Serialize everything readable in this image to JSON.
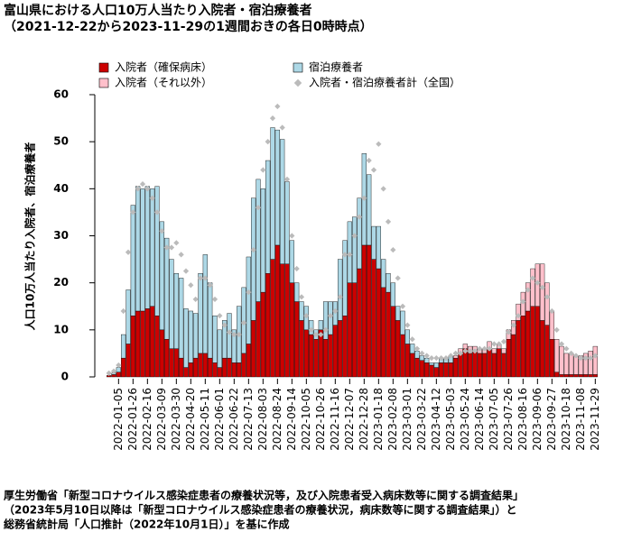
{
  "chart_data": {
    "type": "bar",
    "stacked": true,
    "title": "富山県における人口10万人当たり入院者・宿泊療養者",
    "subtitle": "（2021-12-22から2023-11-29の1週間おきの各日0時時点）",
    "y_label": "人口10万人当たり入院者、宿泊療養者",
    "footnote": [
      "厚生労働省「新型コロナウイルス感染症患者の療養状況等，及び入院患者受入病床数等に関する調査結果」",
      "（2023年5月10日以降は「新型コロナウイルス感染症患者の療養状況，病床数等に関する調査結果」）と",
      "総務省統計局「人口推計（2022年10月1日）」を基に作成"
    ],
    "categories": [
      null,
      null,
      "2022-01-05",
      null,
      null,
      "2022-01-26",
      null,
      null,
      "2022-02-16",
      null,
      null,
      "2022-03-09",
      null,
      null,
      "2022-03-30",
      null,
      null,
      "2022-04-20",
      null,
      null,
      "2022-05-11",
      null,
      null,
      "2022-06-01",
      null,
      null,
      "2022-06-22",
      null,
      null,
      "2022-07-13",
      null,
      null,
      "2022-08-03",
      null,
      null,
      "2022-08-24",
      null,
      null,
      "2022-09-14",
      null,
      null,
      "2022-10-05",
      null,
      null,
      "2022-10-26",
      null,
      null,
      "2022-11-16",
      null,
      null,
      "2022-12-07",
      null,
      null,
      "2022-12-28",
      null,
      null,
      "2023-01-18",
      null,
      null,
      "2023-02-08",
      null,
      null,
      "2023-03-01",
      null,
      null,
      "2023-03-22",
      null,
      null,
      "2023-04-12",
      null,
      null,
      "2023-05-03",
      null,
      null,
      "2023-05-24",
      null,
      null,
      "2023-06-14",
      null,
      null,
      "2023-07-05",
      null,
      null,
      "2023-07-26",
      null,
      null,
      "2023-08-16",
      null,
      null,
      "2023-09-06",
      null,
      null,
      "2023-09-27",
      null,
      null,
      "2023-10-18",
      null,
      null,
      "2023-11-08",
      null,
      null,
      "2023-11-29"
    ],
    "series": [
      {
        "name": "入院者（確保病床）",
        "color": "#cc0000",
        "values": [
          0.3,
          0.5,
          1,
          4,
          7,
          13,
          14,
          14,
          14.5,
          15,
          13,
          10,
          8,
          6,
          6,
          4,
          2,
          3,
          4,
          5,
          5,
          4,
          3,
          2,
          4,
          4,
          3,
          3,
          5,
          7,
          12,
          16,
          18,
          22,
          25,
          28,
          24,
          24,
          20,
          16,
          12,
          10,
          9,
          8,
          10,
          8,
          9,
          11,
          12,
          13,
          20,
          20,
          23,
          28,
          28,
          25,
          23,
          19,
          18,
          15,
          12,
          9,
          7,
          5,
          4,
          3.5,
          3,
          2.5,
          2,
          3,
          3,
          3,
          4,
          5,
          6,
          5,
          5.5,
          5,
          5,
          6,
          5,
          6,
          5,
          8,
          9,
          12,
          13,
          14,
          15,
          15,
          12,
          11,
          8,
          1,
          0.5,
          0.5,
          0.5,
          0.5,
          0.5,
          0.5,
          0.5,
          0.5
        ]
      },
      {
        "name": "入院者（それ以外）",
        "color": "#ffc0cb",
        "values": [
          null,
          null,
          null,
          null,
          null,
          null,
          null,
          null,
          null,
          null,
          null,
          null,
          null,
          null,
          null,
          null,
          null,
          null,
          null,
          null,
          null,
          null,
          null,
          null,
          null,
          null,
          null,
          null,
          null,
          null,
          null,
          null,
          null,
          null,
          null,
          null,
          null,
          null,
          null,
          null,
          null,
          null,
          null,
          null,
          null,
          null,
          null,
          null,
          null,
          null,
          null,
          null,
          null,
          null,
          null,
          null,
          null,
          null,
          null,
          null,
          null,
          null,
          null,
          null,
          null,
          null,
          null,
          null,
          null,
          null,
          null,
          null,
          0.5,
          1,
          1,
          1.5,
          1,
          1,
          1,
          1.5,
          1,
          1,
          1,
          2,
          3,
          3.5,
          5,
          6,
          8,
          9,
          12,
          9,
          6,
          7,
          6,
          4.5,
          4.5,
          4,
          4,
          4.5,
          5,
          6
        ]
      },
      {
        "name": "宿泊療養者",
        "color": "#add8e6",
        "values": [
          0,
          0.3,
          1,
          5,
          11.5,
          23.5,
          26.5,
          26,
          26,
          25,
          27.5,
          23,
          21.5,
          19,
          16,
          17,
          12.5,
          11,
          9.5,
          17,
          21,
          16,
          10,
          8,
          8,
          9.5,
          7,
          12,
          14,
          18.5,
          26,
          26,
          22,
          24,
          28,
          24.5,
          26.5,
          17.5,
          9,
          4,
          4,
          5,
          3,
          2,
          2,
          8,
          7,
          5,
          13,
          16,
          13,
          14,
          15,
          19.5,
          15,
          7,
          9,
          6,
          4,
          5,
          3,
          5,
          3,
          2,
          1.5,
          1,
          1,
          0.5,
          1,
          1,
          1,
          1.5,
          null,
          null,
          null,
          null,
          null,
          null,
          null,
          null,
          null,
          null,
          null,
          null,
          null,
          null,
          null,
          null,
          null,
          null,
          null,
          null,
          null,
          null,
          null,
          null,
          null,
          null,
          null,
          null,
          null,
          null
        ]
      },
      {
        "name": "入院者・宿泊療養者計（全国）",
        "type": "scatter",
        "color": "#bbbbbb",
        "values": [
          0.8,
          1.2,
          2.5,
          14,
          26.5,
          35,
          40,
          41,
          40,
          38,
          35,
          31,
          27.5,
          27.5,
          28.5,
          26,
          22.5,
          19.5,
          16.5,
          21,
          21,
          19.5,
          16.5,
          13,
          11,
          9.5,
          9,
          9,
          11.5,
          18,
          27,
          36,
          44,
          50,
          55,
          57.5,
          53,
          42,
          30,
          23,
          17,
          13,
          10,
          9,
          9,
          10,
          13,
          14,
          17,
          26,
          26,
          30,
          34,
          38,
          46,
          44,
          49.5,
          40,
          33,
          27,
          21,
          15,
          11,
          8,
          6,
          5,
          4.5,
          4,
          4,
          4,
          4,
          4.5,
          5,
          5,
          5.5,
          5.5,
          5.5,
          6,
          6,
          6,
          7,
          7,
          7.5,
          9.5,
          11,
          13,
          16,
          18.5,
          21,
          20,
          19,
          17,
          14,
          10,
          7,
          6,
          5,
          4.5,
          4,
          4,
          4,
          4.5
        ]
      }
    ],
    "ylim": [
      0,
      60
    ],
    "yticks": [
      0,
      10,
      20,
      30,
      40,
      50,
      60
    ]
  }
}
